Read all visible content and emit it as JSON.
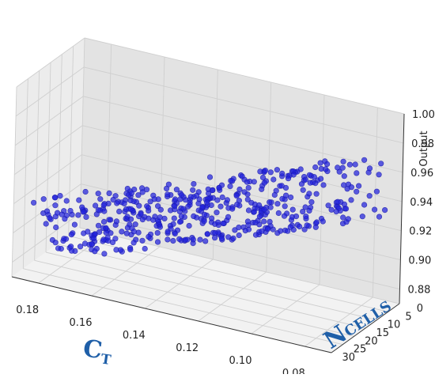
{
  "chart_data": {
    "type": "scatter",
    "title": "",
    "colors": {
      "point_fill": "#2222dd",
      "point_stroke": "#1a1aa8",
      "pane_left": "#ececec",
      "pane_right": "#e3e3e3",
      "pane_floor": "#f2f2f2",
      "grid": "#cfcfcf",
      "axis_label": "#1f5fa8"
    },
    "x_axis": {
      "label_main": "C",
      "label_sub": "T",
      "range": [
        0.07,
        0.19
      ],
      "ticks": [
        0.18,
        0.16,
        0.14,
        0.12,
        0.1,
        0.08
      ],
      "tick_labels": [
        "0.18",
        "0.16",
        "0.14",
        "0.12",
        "0.10",
        "0.08"
      ]
    },
    "y_axis": {
      "label_main": "N",
      "label_sub": "CELLS",
      "range": [
        0,
        30
      ],
      "ticks": [
        0,
        5,
        10,
        15,
        20,
        25,
        30
      ],
      "tick_labels": [
        "0",
        "5",
        "10",
        "15",
        "20",
        "25",
        "30"
      ]
    },
    "z_axis": {
      "label": "Output",
      "range": [
        0.87,
        1.0
      ],
      "ticks": [
        0.88,
        0.9,
        0.92,
        0.94,
        0.96,
        0.98,
        1.0
      ],
      "tick_labels": [
        "0.88",
        "0.90",
        "0.92",
        "0.94",
        "0.96",
        "0.98",
        "1.00"
      ]
    },
    "grid": true,
    "n_points": 500,
    "trend": "Output increases as C_T decreases and as N_CELLS increases; values span roughly 0.88 to 1.00",
    "points_sample": [
      {
        "x": 0.18,
        "y": 2,
        "z": 0.885
      },
      {
        "x": 0.17,
        "y": 8,
        "z": 0.895
      },
      {
        "x": 0.16,
        "y": 15,
        "z": 0.905
      },
      {
        "x": 0.15,
        "y": 20,
        "z": 0.915
      },
      {
        "x": 0.14,
        "y": 25,
        "z": 0.93
      },
      {
        "x": 0.13,
        "y": 10,
        "z": 0.92
      },
      {
        "x": 0.12,
        "y": 18,
        "z": 0.94
      },
      {
        "x": 0.11,
        "y": 5,
        "z": 0.93
      },
      {
        "x": 0.1,
        "y": 22,
        "z": 0.96
      },
      {
        "x": 0.09,
        "y": 12,
        "z": 0.96
      },
      {
        "x": 0.08,
        "y": 28,
        "z": 0.99
      },
      {
        "x": 0.08,
        "y": 3,
        "z": 0.95
      }
    ]
  }
}
